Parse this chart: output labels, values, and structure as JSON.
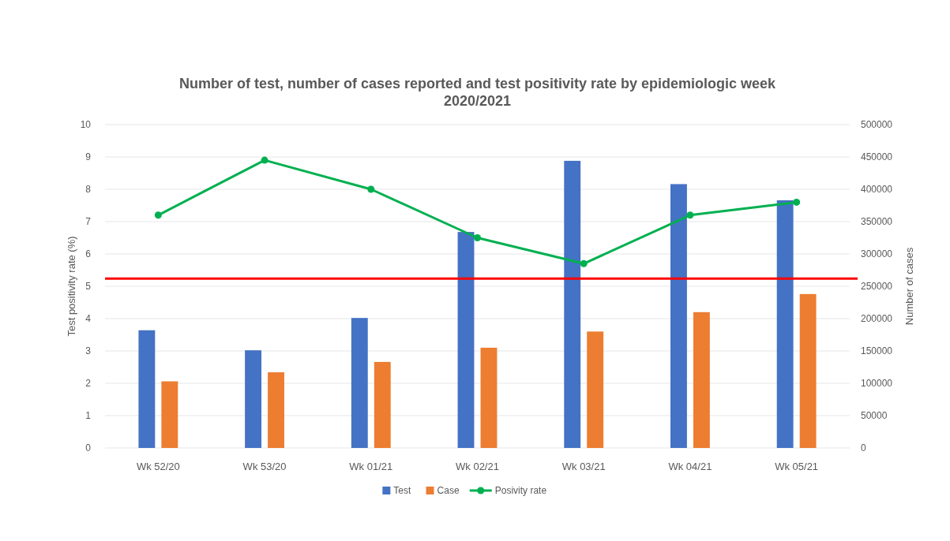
{
  "chart_data": {
    "type": "bar",
    "title": "Number of test, number of cases reported and test positivity rate by epidemiologic week\n2020/2021",
    "ylabel": "Test positivity rate (%)",
    "y2label": "Number of cases",
    "categories": [
      "Wk 52/20",
      "Wk 53/20",
      "Wk 01/21",
      "Wk 02/21",
      "Wk 03/21",
      "Wk 04/21",
      "Wk 05/21"
    ],
    "series": [
      {
        "name": "Test",
        "axis": "y2",
        "color": "#4472c4",
        "values": [
          182000,
          151000,
          201000,
          334000,
          444000,
          408000,
          383000
        ]
      },
      {
        "name": "Case",
        "axis": "y2",
        "color": "#ed7d31",
        "values": [
          103000,
          117000,
          133000,
          155000,
          180000,
          210000,
          238000
        ]
      },
      {
        "name": "Posivity rate",
        "type": "line",
        "color": "#00b050",
        "marker": "circle",
        "values": [
          7.2,
          8.9,
          8.0,
          6.5,
          5.7,
          7.2,
          7.6
        ]
      }
    ],
    "ylim": [
      0,
      10
    ],
    "yticks": [
      0,
      1,
      2,
      3,
      4,
      5,
      6,
      7,
      8,
      9,
      10
    ],
    "y2lim": [
      0,
      500000
    ],
    "y2ticks": [
      0,
      50000,
      100000,
      150000,
      200000,
      250000,
      300000,
      350000,
      400000,
      450000,
      500000
    ],
    "ref_lines": [
      {
        "axis": "y",
        "value": 5.24,
        "color": "#ff0000"
      }
    ],
    "grid": "y",
    "legend": "bottom"
  }
}
